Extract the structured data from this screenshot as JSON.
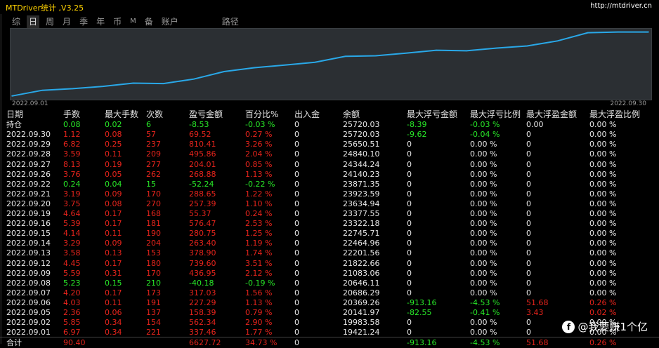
{
  "titlebar": {
    "app_title": "MTDriver统计 ,V3.25",
    "url": "http://mtdriver.cn"
  },
  "tabs": [
    {
      "label": "综",
      "active": false
    },
    {
      "label": "日",
      "active": true
    },
    {
      "label": "周",
      "active": false
    },
    {
      "label": "月",
      "active": false
    },
    {
      "label": "季",
      "active": false
    },
    {
      "label": "年",
      "active": false
    },
    {
      "label": "币",
      "active": false
    },
    {
      "label": "M",
      "active": false
    },
    {
      "label": "备",
      "active": false
    },
    {
      "label": "账户",
      "active": false
    },
    {
      "label": "路径",
      "active": false
    }
  ],
  "chart_data": {
    "type": "line",
    "x_start_label": "2022.09.01",
    "x_end_label": "2022.09.30",
    "color": "#29a8e8",
    "x": [
      "2022.09.01",
      "2022.09.02",
      "2022.09.05",
      "2022.09.06",
      "2022.09.07",
      "2022.09.08",
      "2022.09.09",
      "2022.09.12",
      "2022.09.13",
      "2022.09.14",
      "2022.09.15",
      "2022.09.16",
      "2022.09.19",
      "2022.09.20",
      "2022.09.21",
      "2022.09.22",
      "2022.09.26",
      "2022.09.27",
      "2022.09.28",
      "2022.09.29",
      "2022.09.30",
      "2022.09.30"
    ],
    "values": [
      19421.24,
      19983.58,
      20141.97,
      20369.26,
      20686.29,
      20646.11,
      21083.06,
      21822.66,
      22201.56,
      22464.96,
      22745.71,
      23322.18,
      23377.55,
      23634.94,
      23923.59,
      23871.35,
      24140.23,
      24344.24,
      24840.1,
      25650.51,
      25720.03,
      25720.03
    ],
    "ylim": [
      19200,
      25900
    ]
  },
  "table": {
    "headers": [
      "日期",
      "手数",
      "最大手数",
      "次数",
      "盈亏金额",
      "百分比%",
      "出入金",
      "余额",
      "最大浮亏金额",
      "最大浮亏比例",
      "最大浮盈金额",
      "最大浮盈比例"
    ],
    "rows": [
      {
        "cells": [
          "持仓",
          "0.08",
          "0.02",
          "6",
          "-8.53",
          "-0.03 %",
          "0",
          "25720.03",
          "-8.39",
          "-0.03 %",
          "0.00",
          "0.00 %"
        ],
        "colors": [
          "w",
          "g",
          "g",
          "g",
          "g",
          "g",
          "w",
          "w",
          "g",
          "g",
          "w",
          "w"
        ]
      },
      {
        "cells": [
          "2022.09.30",
          "1.12",
          "0.08",
          "57",
          "69.52",
          "0.27 %",
          "0",
          "25720.03",
          "-9.62",
          "-0.04 %",
          "0",
          "0.00 %"
        ],
        "colors": [
          "w",
          "r",
          "r",
          "r",
          "r",
          "r",
          "w",
          "w",
          "g",
          "g",
          "w",
          "w"
        ]
      },
      {
        "cells": [
          "2022.09.29",
          "6.82",
          "0.25",
          "237",
          "810.41",
          "3.26 %",
          "0",
          "25650.51",
          "0",
          "0.00 %",
          "0",
          "0.00 %"
        ],
        "colors": [
          "w",
          "r",
          "r",
          "r",
          "r",
          "r",
          "w",
          "w",
          "w",
          "w",
          "w",
          "w"
        ]
      },
      {
        "cells": [
          "2022.09.28",
          "3.59",
          "0.11",
          "209",
          "495.86",
          "2.04 %",
          "0",
          "24840.10",
          "0",
          "0.00 %",
          "0",
          "0.00 %"
        ],
        "colors": [
          "w",
          "r",
          "r",
          "r",
          "r",
          "r",
          "w",
          "w",
          "w",
          "w",
          "w",
          "w"
        ]
      },
      {
        "cells": [
          "2022.09.27",
          "8.13",
          "0.19",
          "277",
          "204.01",
          "0.85 %",
          "0",
          "24344.24",
          "0",
          "0.00 %",
          "0",
          "0.00 %"
        ],
        "colors": [
          "w",
          "r",
          "r",
          "r",
          "r",
          "r",
          "w",
          "w",
          "w",
          "w",
          "w",
          "w"
        ]
      },
      {
        "cells": [
          "2022.09.26",
          "3.76",
          "0.05",
          "262",
          "268.88",
          "1.13 %",
          "0",
          "24140.23",
          "0",
          "0.00 %",
          "0",
          "0.00 %"
        ],
        "colors": [
          "w",
          "r",
          "r",
          "r",
          "r",
          "r",
          "w",
          "w",
          "w",
          "w",
          "w",
          "w"
        ]
      },
      {
        "cells": [
          "2022.09.22",
          "0.24",
          "0.04",
          "15",
          "-52.24",
          "-0.22 %",
          "0",
          "23871.35",
          "0",
          "0.00 %",
          "0",
          "0.00 %"
        ],
        "colors": [
          "w",
          "g",
          "g",
          "g",
          "g",
          "g",
          "w",
          "w",
          "w",
          "w",
          "w",
          "w"
        ]
      },
      {
        "cells": [
          "2022.09.21",
          "3.19",
          "0.09",
          "170",
          "288.65",
          "1.22 %",
          "0",
          "23923.59",
          "0",
          "0.00 %",
          "0",
          "0.00 %"
        ],
        "colors": [
          "w",
          "r",
          "r",
          "r",
          "r",
          "r",
          "w",
          "w",
          "w",
          "w",
          "w",
          "w"
        ]
      },
      {
        "cells": [
          "2022.09.20",
          "3.75",
          "0.08",
          "270",
          "257.39",
          "1.10 %",
          "0",
          "23634.94",
          "0",
          "0.00 %",
          "0",
          "0.00 %"
        ],
        "colors": [
          "w",
          "r",
          "r",
          "r",
          "r",
          "r",
          "w",
          "w",
          "w",
          "w",
          "w",
          "w"
        ]
      },
      {
        "cells": [
          "2022.09.19",
          "4.64",
          "0.17",
          "168",
          "55.37",
          "0.24 %",
          "0",
          "23377.55",
          "0",
          "0.00 %",
          "0",
          "0.00 %"
        ],
        "colors": [
          "w",
          "r",
          "r",
          "r",
          "r",
          "r",
          "w",
          "w",
          "w",
          "w",
          "w",
          "w"
        ]
      },
      {
        "cells": [
          "2022.09.16",
          "5.39",
          "0.17",
          "181",
          "576.47",
          "2.53 %",
          "0",
          "23322.18",
          "0",
          "0.00 %",
          "0",
          "0.00 %"
        ],
        "colors": [
          "w",
          "r",
          "r",
          "r",
          "r",
          "r",
          "w",
          "w",
          "w",
          "w",
          "w",
          "w"
        ]
      },
      {
        "cells": [
          "2022.09.15",
          "4.14",
          "0.11",
          "190",
          "280.75",
          "1.25 %",
          "0",
          "22745.71",
          "0",
          "0.00 %",
          "0",
          "0.00 %"
        ],
        "colors": [
          "w",
          "r",
          "r",
          "r",
          "r",
          "r",
          "w",
          "w",
          "w",
          "w",
          "w",
          "w"
        ]
      },
      {
        "cells": [
          "2022.09.14",
          "3.29",
          "0.09",
          "204",
          "263.40",
          "1.19 %",
          "0",
          "22464.96",
          "0",
          "0.00 %",
          "0",
          "0.00 %"
        ],
        "colors": [
          "w",
          "r",
          "r",
          "r",
          "r",
          "r",
          "w",
          "w",
          "w",
          "w",
          "w",
          "w"
        ]
      },
      {
        "cells": [
          "2022.09.13",
          "3.58",
          "0.13",
          "153",
          "378.90",
          "1.74 %",
          "0",
          "22201.56",
          "0",
          "0.00 %",
          "0",
          "0.00 %"
        ],
        "colors": [
          "w",
          "r",
          "r",
          "r",
          "r",
          "r",
          "w",
          "w",
          "w",
          "w",
          "w",
          "w"
        ]
      },
      {
        "cells": [
          "2022.09.12",
          "4.45",
          "0.17",
          "180",
          "739.60",
          "3.51 %",
          "0",
          "21822.66",
          "0",
          "0.00 %",
          "0",
          "0.00 %"
        ],
        "colors": [
          "w",
          "r",
          "r",
          "r",
          "r",
          "r",
          "w",
          "w",
          "w",
          "w",
          "w",
          "w"
        ]
      },
      {
        "cells": [
          "2022.09.09",
          "5.59",
          "0.31",
          "170",
          "436.95",
          "2.12 %",
          "0",
          "21083.06",
          "0",
          "0.00 %",
          "0",
          "0.00 %"
        ],
        "colors": [
          "w",
          "r",
          "r",
          "r",
          "r",
          "r",
          "w",
          "w",
          "w",
          "w",
          "w",
          "w"
        ]
      },
      {
        "cells": [
          "2022.09.08",
          "5.23",
          "0.15",
          "210",
          "-40.18",
          "-0.19 %",
          "0",
          "20646.11",
          "0",
          "0.00 %",
          "0",
          "0.00 %"
        ],
        "colors": [
          "w",
          "g",
          "g",
          "g",
          "g",
          "g",
          "w",
          "w",
          "w",
          "w",
          "w",
          "w"
        ]
      },
      {
        "cells": [
          "2022.09.07",
          "4.20",
          "0.17",
          "173",
          "317.03",
          "1.56 %",
          "0",
          "20686.29",
          "0",
          "0.00 %",
          "0",
          "0.00 %"
        ],
        "colors": [
          "w",
          "r",
          "r",
          "r",
          "r",
          "r",
          "w",
          "w",
          "w",
          "w",
          "w",
          "w"
        ]
      },
      {
        "cells": [
          "2022.09.06",
          "4.03",
          "0.11",
          "191",
          "227.29",
          "1.13 %",
          "0",
          "20369.26",
          "-913.16",
          "-4.53 %",
          "51.68",
          "0.26 %"
        ],
        "colors": [
          "w",
          "r",
          "r",
          "r",
          "r",
          "r",
          "w",
          "w",
          "g",
          "g",
          "r",
          "r"
        ]
      },
      {
        "cells": [
          "2022.09.05",
          "2.36",
          "0.06",
          "137",
          "158.39",
          "0.79 %",
          "0",
          "20141.97",
          "-82.55",
          "-0.41 %",
          "3.43",
          "0.02 %"
        ],
        "colors": [
          "w",
          "r",
          "r",
          "r",
          "r",
          "r",
          "w",
          "w",
          "g",
          "g",
          "r",
          "r"
        ]
      },
      {
        "cells": [
          "2022.09.02",
          "5.85",
          "0.34",
          "154",
          "562.34",
          "2.90 %",
          "0",
          "19983.58",
          "0",
          "0.00 %",
          "0",
          "0.00 %"
        ],
        "colors": [
          "w",
          "r",
          "r",
          "r",
          "r",
          "r",
          "w",
          "w",
          "w",
          "w",
          "w",
          "w"
        ]
      },
      {
        "cells": [
          "2022.09.01",
          "6.97",
          "0.34",
          "221",
          "337.46",
          "1.77 %",
          "0",
          "19421.24",
          "0",
          "0.00 %",
          "0",
          "0.00 %"
        ],
        "colors": [
          "w",
          "r",
          "r",
          "r",
          "r",
          "r",
          "w",
          "w",
          "w",
          "w",
          "w",
          "w"
        ]
      }
    ],
    "total": {
      "cells": [
        "合计",
        "90.40",
        "",
        "",
        "6627.72",
        "34.73 %",
        "0",
        "",
        "-913.16",
        "-4.53 %",
        "51.68",
        "0.26 %"
      ],
      "colors": [
        "w",
        "r",
        "w",
        "w",
        "r",
        "r",
        "w",
        "w",
        "g",
        "g",
        "r",
        "r"
      ]
    }
  },
  "watermark": {
    "logo": "f",
    "text": "@我要赚1个亿"
  }
}
